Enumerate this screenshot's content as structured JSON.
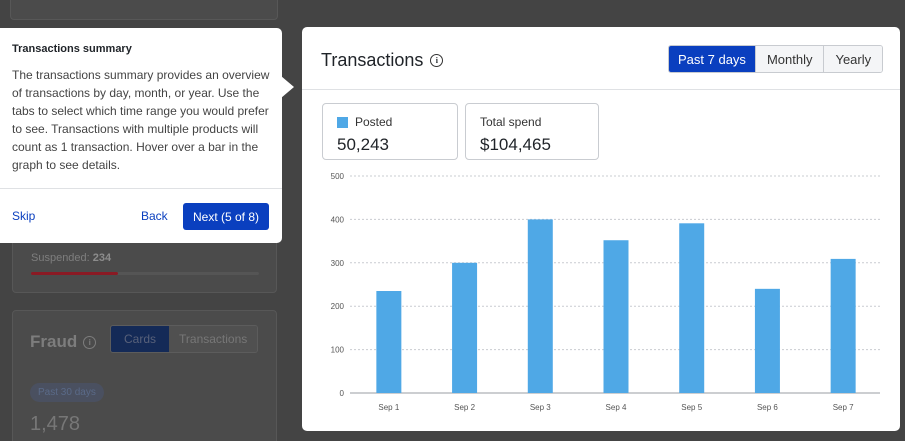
{
  "background": {
    "suspended_label": "Suspended: ",
    "suspended_value": "234",
    "suspended_fraction": 0.38,
    "fraud": {
      "title": "Fraud",
      "tabs": [
        "Cards",
        "Transactions"
      ],
      "active_tab": "Cards",
      "range_badge": "Past 30 days",
      "value": "1,478"
    }
  },
  "popover": {
    "title": "Transactions summary",
    "body": "The transactions summary provides an overview of transactions by day, month, or year. Use the tabs to select which time range you would prefer to see. Transactions with multiple products will count as 1 transaction. Hover over a bar in the graph to see details.",
    "skip_label": "Skip",
    "back_label": "Back",
    "next_label": "Next (5 of 8)"
  },
  "card": {
    "title": "Transactions",
    "tabs": [
      "Past 7 days",
      "Monthly",
      "Yearly"
    ],
    "active_tab": "Past 7 days",
    "stats": {
      "posted_label": "Posted",
      "posted_value": "50,243",
      "spend_label": "Total spend",
      "spend_value": "$104,465"
    }
  },
  "colors": {
    "accent": "#0a3fbf",
    "bar": "#4fa8e6",
    "danger": "#8a1a24"
  },
  "chart_data": {
    "type": "bar",
    "categories": [
      "Sep 1",
      "Sep 2",
      "Sep 3",
      "Sep 4",
      "Sep 5",
      "Sep 6",
      "Sep 7"
    ],
    "series": [
      {
        "name": "Posted",
        "values": [
          235,
          300,
          400,
          352,
          391,
          240,
          309
        ]
      }
    ],
    "yticks": [
      0,
      100,
      200,
      300,
      400,
      500
    ],
    "ylim": [
      0,
      500
    ],
    "grid": true
  }
}
